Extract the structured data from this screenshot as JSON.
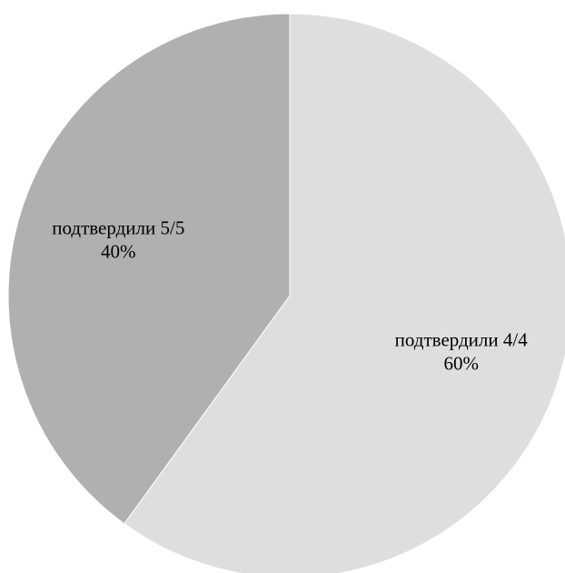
{
  "chart_data": {
    "type": "pie",
    "title": "",
    "start_angle_deg": 0,
    "direction": "clockwise",
    "slices": [
      {
        "label": "подтвердили 4/4",
        "value": 60,
        "value_label": "60%",
        "color": "#dedede"
      },
      {
        "label": "подтвердили 5/5",
        "value": 40,
        "value_label": "40%",
        "color": "#b0b0b0"
      }
    ],
    "legend": "none",
    "data_labels": "inside"
  }
}
